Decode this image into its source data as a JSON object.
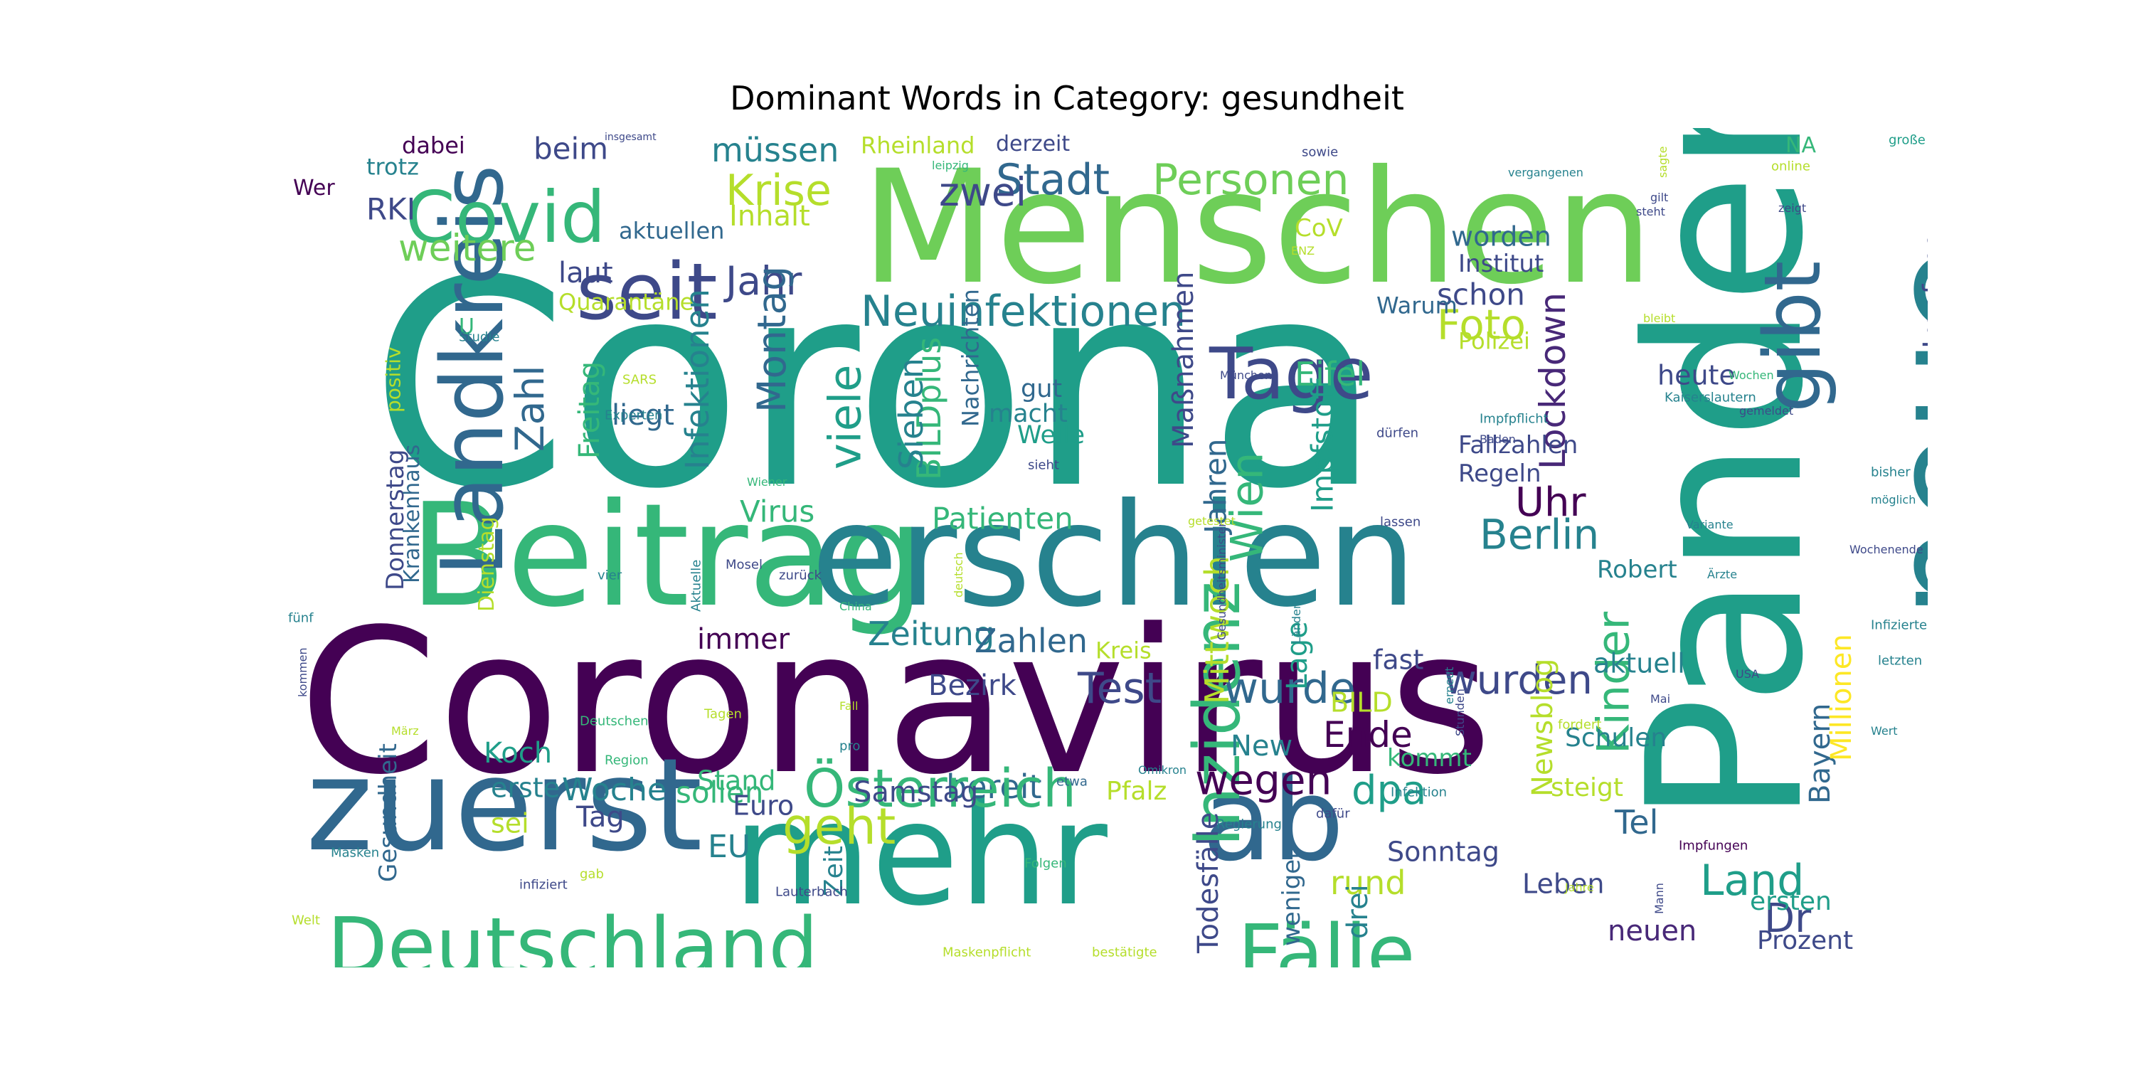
{
  "title": "Dominant Words in Category: gesundheit",
  "palette": [
    "#440154",
    "#482878",
    "#3e4989",
    "#31688e",
    "#26828e",
    "#1f9e89",
    "#35b779",
    "#6ece58",
    "#b5de2b",
    "#fde725"
  ],
  "words": [
    {
      "text": "Corona",
      "color": "#1f9e89",
      "rotated": false
    },
    {
      "text": "Coronavirus",
      "color": "#440154",
      "rotated": false
    },
    {
      "text": "Menschen",
      "color": "#6ece58",
      "rotated": false
    },
    {
      "text": "Pandemie",
      "color": "#1f9e89",
      "rotated": true
    },
    {
      "text": "Beitrag",
      "color": "#35b779",
      "rotated": false
    },
    {
      "text": "erschien",
      "color": "#26828e",
      "rotated": false
    },
    {
      "text": "mehr",
      "color": "#1f9e89",
      "rotated": false
    },
    {
      "text": "zuerst",
      "color": "#31688e",
      "rotated": false
    },
    {
      "text": "neue",
      "color": "#26828e",
      "rotated": true
    },
    {
      "text": "ab",
      "color": "#31688e",
      "rotated": false
    },
    {
      "text": "Landkreis",
      "color": "#31688e",
      "rotated": true
    },
    {
      "text": "Deutschland",
      "color": "#35b779",
      "rotated": false
    },
    {
      "text": "seit",
      "color": "#3e4989",
      "rotated": false
    },
    {
      "text": "Covid",
      "color": "#35b779",
      "rotated": false
    },
    {
      "text": "Fälle",
      "color": "#35b779",
      "rotated": false
    },
    {
      "text": "Inzidenz",
      "color": "#35b779",
      "rotated": true
    },
    {
      "text": "gibt",
      "color": "#31688e",
      "rotated": true
    },
    {
      "text": "Tage",
      "color": "#3e4989",
      "rotated": false
    },
    {
      "text": "Neuinfektionen",
      "color": "#26828e",
      "rotated": false
    },
    {
      "text": "Personen",
      "color": "#6ece58",
      "rotated": false
    },
    {
      "text": "Stadt",
      "color": "#31688e",
      "rotated": false
    },
    {
      "text": "zwei",
      "color": "#3e4989",
      "rotated": false
    },
    {
      "text": "Krise",
      "color": "#b5de2b",
      "rotated": false
    },
    {
      "text": "müssen",
      "color": "#26828e",
      "rotated": false
    },
    {
      "text": "Jahr",
      "color": "#3e4989",
      "rotated": false
    },
    {
      "text": "weitere",
      "color": "#6ece58",
      "rotated": false
    },
    {
      "text": "Inhalt",
      "color": "#b5de2b",
      "rotated": false
    },
    {
      "text": "Rheinland",
      "color": "#b5de2b",
      "rotated": false
    },
    {
      "text": "derzeit",
      "color": "#3e4989",
      "rotated": false
    },
    {
      "text": "beim",
      "color": "#3e4989",
      "rotated": false
    },
    {
      "text": "dabei",
      "color": "#440154",
      "rotated": false
    },
    {
      "text": "insgesamt",
      "color": "#3e4989",
      "rotated": false
    },
    {
      "text": "trotz",
      "color": "#26828e",
      "rotated": false
    },
    {
      "text": "RKI",
      "color": "#3e4989",
      "rotated": false
    },
    {
      "text": "Wer",
      "color": "#440154",
      "rotated": false
    },
    {
      "text": "aktuellen",
      "color": "#31688e",
      "rotated": false
    },
    {
      "text": "laut",
      "color": "#3e4989",
      "rotated": false
    },
    {
      "text": "Quarantäne",
      "color": "#b5de2b",
      "rotated": false
    },
    {
      "text": "Zahl",
      "color": "#31688e",
      "rotated": true
    },
    {
      "text": "Freitag",
      "color": "#35b779",
      "rotated": true
    },
    {
      "text": "Infektionen",
      "color": "#26828e",
      "rotated": true
    },
    {
      "text": "Montag",
      "color": "#31688e",
      "rotated": true
    },
    {
      "text": "viele",
      "color": "#1f9e89",
      "rotated": true
    },
    {
      "text": "BILDplus",
      "color": "#35b779",
      "rotated": true
    },
    {
      "text": "Sieben",
      "color": "#26828e",
      "rotated": true
    },
    {
      "text": "Nachrichten",
      "color": "#31688e",
      "rotated": true
    },
    {
      "text": "liegt",
      "color": "#31688e",
      "rotated": false
    },
    {
      "text": "gut",
      "color": "#31688e",
      "rotated": false
    },
    {
      "text": "macht",
      "color": "#26828e",
      "rotated": false
    },
    {
      "text": "Welle",
      "color": "#1f9e89",
      "rotated": false
    },
    {
      "text": "sieht",
      "color": "#3e4989",
      "rotated": false
    },
    {
      "text": "Virus",
      "color": "#35b779",
      "rotated": false
    },
    {
      "text": "Patienten",
      "color": "#35b779",
      "rotated": false
    },
    {
      "text": "Maßnahmen",
      "color": "#3e4989",
      "rotated": true
    },
    {
      "text": "Jahren",
      "color": "#31688e",
      "rotated": true
    },
    {
      "text": "Wien",
      "color": "#35b779",
      "rotated": true
    },
    {
      "text": "Impfstoff",
      "color": "#1f9e89",
      "rotated": true
    },
    {
      "text": "Eifel",
      "color": "#35b779",
      "rotated": false
    },
    {
      "text": "Foto",
      "color": "#b5de2b",
      "rotated": false
    },
    {
      "text": "schon",
      "color": "#3e4989",
      "rotated": false
    },
    {
      "text": "Warum",
      "color": "#31688e",
      "rotated": false
    },
    {
      "text": "Polizei",
      "color": "#b5de2b",
      "rotated": false
    },
    {
      "text": "Lockdown",
      "color": "#482878",
      "rotated": true
    },
    {
      "text": "worden",
      "color": "#31688e",
      "rotated": false
    },
    {
      "text": "Institut",
      "color": "#3e4989",
      "rotated": false
    },
    {
      "text": "CoV",
      "color": "#b5de2b",
      "rotated": false
    },
    {
      "text": "Impfung",
      "color": "#3e4989",
      "rotated": true
    },
    {
      "text": "heute",
      "color": "#3e4989",
      "rotated": false
    },
    {
      "text": "Uhr",
      "color": "#440154",
      "rotated": false
    },
    {
      "text": "Berlin",
      "color": "#26828e",
      "rotated": false
    },
    {
      "text": "Fallzahlen",
      "color": "#3e4989",
      "rotated": false
    },
    {
      "text": "Regeln",
      "color": "#3e4989",
      "rotated": false
    },
    {
      "text": "Robert",
      "color": "#26828e",
      "rotated": false
    },
    {
      "text": "Test",
      "color": "#3e4989",
      "rotated": false
    },
    {
      "text": "wurde",
      "color": "#31688e",
      "rotated": false
    },
    {
      "text": "wurden",
      "color": "#3e4989",
      "rotated": false
    },
    {
      "text": "Zeitung",
      "color": "#26828e",
      "rotated": false
    },
    {
      "text": "Zahlen",
      "color": "#31688e",
      "rotated": false
    },
    {
      "text": "Kreis",
      "color": "#b5de2b",
      "rotated": false
    },
    {
      "text": "immer",
      "color": "#440154",
      "rotated": false
    },
    {
      "text": "fast",
      "color": "#3e4989",
      "rotated": false
    },
    {
      "text": "Kinder",
      "color": "#35b779",
      "rotated": true
    },
    {
      "text": "aktuell",
      "color": "#26828e",
      "rotated": false
    },
    {
      "text": "Mittwoch",
      "color": "#b5de2b",
      "rotated": true
    },
    {
      "text": "Lage",
      "color": "#1f9e89",
      "rotated": true
    },
    {
      "text": "BILD",
      "color": "#b5de2b",
      "rotated": false
    },
    {
      "text": "Ende",
      "color": "#440154",
      "rotated": false
    },
    {
      "text": "New",
      "color": "#26828e",
      "rotated": false
    },
    {
      "text": "Newsblog",
      "color": "#b5de2b",
      "rotated": true
    },
    {
      "text": "Schulen",
      "color": "#26828e",
      "rotated": false
    },
    {
      "text": "Bayern",
      "color": "#31688e",
      "rotated": true
    },
    {
      "text": "Millionen",
      "color": "#fde725",
      "rotated": true
    },
    {
      "text": "Bezirk",
      "color": "#3e4989",
      "rotated": false
    },
    {
      "text": "bereit",
      "color": "#31688e",
      "rotated": false
    },
    {
      "text": "Österreich",
      "color": "#35b779",
      "rotated": false
    },
    {
      "text": "wegen",
      "color": "#440154",
      "rotated": false
    },
    {
      "text": "dpa",
      "color": "#1f9e89",
      "rotated": false
    },
    {
      "text": "Tel",
      "color": "#31688e",
      "rotated": false
    },
    {
      "text": "steigt",
      "color": "#b5de2b",
      "rotated": false
    },
    {
      "text": "geht",
      "color": "#b5de2b",
      "rotated": false
    },
    {
      "text": "Woche",
      "color": "#26828e",
      "rotated": false
    },
    {
      "text": "sollen",
      "color": "#35b779",
      "rotated": false
    },
    {
      "text": "Samstag",
      "color": "#3e4989",
      "rotated": false
    },
    {
      "text": "Pfalz",
      "color": "#b5de2b",
      "rotated": false
    },
    {
      "text": "Land",
      "color": "#1f9e89",
      "rotated": false
    },
    {
      "text": "Dr",
      "color": "#3e4989",
      "rotated": false
    },
    {
      "text": "Sonntag",
      "color": "#3e4989",
      "rotated": false
    },
    {
      "text": "rund",
      "color": "#b5de2b",
      "rotated": false
    },
    {
      "text": "drei",
      "color": "#26828e",
      "rotated": true
    },
    {
      "text": "Leben",
      "color": "#3e4989",
      "rotated": false
    },
    {
      "text": "ersten",
      "color": "#1f9e89",
      "rotated": false
    },
    {
      "text": "neuen",
      "color": "#482878",
      "rotated": false
    },
    {
      "text": "Prozent",
      "color": "#3e4989",
      "rotated": false
    },
    {
      "text": "Todesfälle",
      "color": "#3e4989",
      "rotated": true
    },
    {
      "text": "weniger",
      "color": "#31688e",
      "rotated": true
    },
    {
      "text": "EU",
      "color": "#26828e",
      "rotated": false
    },
    {
      "text": "Euro",
      "color": "#3e4989",
      "rotated": false
    },
    {
      "text": "Stand",
      "color": "#35b779",
      "rotated": false
    },
    {
      "text": "Tag",
      "color": "#3e4989",
      "rotated": false
    },
    {
      "text": "sei",
      "color": "#b5de2b",
      "rotated": false
    },
    {
      "text": "erste",
      "color": "#26828e",
      "rotated": false
    },
    {
      "text": "Koch",
      "color": "#1f9e89",
      "rotated": false
    },
    {
      "text": "Zeit",
      "color": "#26828e",
      "rotated": true
    },
    {
      "text": "Gesundheit",
      "color": "#31688e",
      "rotated": true
    },
    {
      "text": "Donnerstag",
      "color": "#3e4989",
      "rotated": true
    },
    {
      "text": "Krankenhaus",
      "color": "#31688e",
      "rotated": true
    },
    {
      "text": "Dienstag",
      "color": "#b5de2b",
      "rotated": true
    },
    {
      "text": "positiv",
      "color": "#b5de2b",
      "rotated": true
    },
    {
      "text": "U",
      "color": "#35b779",
      "rotated": false
    },
    {
      "text": "NA",
      "color": "#35b779",
      "rotated": false
    },
    {
      "text": "große",
      "color": "#1f9e89",
      "rotated": false
    },
    {
      "text": "online",
      "color": "#b5de2b",
      "rotated": false
    },
    {
      "text": "sagte",
      "color": "#b5de2b",
      "rotated": true
    },
    {
      "text": "gilt",
      "color": "#3e4989",
      "rotated": false
    },
    {
      "text": "steht",
      "color": "#3e4989",
      "rotated": false
    },
    {
      "text": "zeigt",
      "color": "#3e4989",
      "rotated": false
    },
    {
      "text": "vergangenen",
      "color": "#26828e",
      "rotated": false
    },
    {
      "text": "sowie",
      "color": "#3e4989",
      "rotated": false
    },
    {
      "text": "leipzig",
      "color": "#35b779",
      "rotated": false
    },
    {
      "text": "ENZ",
      "color": "#b5de2b",
      "rotated": false
    },
    {
      "text": "Studie",
      "color": "#26828e",
      "rotated": false
    },
    {
      "text": "SARS",
      "color": "#b5de2b",
      "rotated": false
    },
    {
      "text": "Experten",
      "color": "#26828e",
      "rotated": false
    },
    {
      "text": "Wiener",
      "color": "#35b779",
      "rotated": false
    },
    {
      "text": "München",
      "color": "#3e4989",
      "rotated": false
    },
    {
      "text": "dürfen",
      "color": "#3e4989",
      "rotated": false
    },
    {
      "text": "Impfpflicht",
      "color": "#26828e",
      "rotated": false
    },
    {
      "text": "Baden",
      "color": "#3e4989",
      "rotated": false
    },
    {
      "text": "Kaiserslautern",
      "color": "#26828e",
      "rotated": false
    },
    {
      "text": "bleibt",
      "color": "#b5de2b",
      "rotated": false
    },
    {
      "text": "Wochen",
      "color": "#35b779",
      "rotated": false
    },
    {
      "text": "gemeldet",
      "color": "#3e4989",
      "rotated": false
    },
    {
      "text": "bisher",
      "color": "#26828e",
      "rotated": false
    },
    {
      "text": "möglich",
      "color": "#26828e",
      "rotated": false
    },
    {
      "text": "Wochenende",
      "color": "#3e4989",
      "rotated": false
    },
    {
      "text": "Variante",
      "color": "#26828e",
      "rotated": false
    },
    {
      "text": "Ärzte",
      "color": "#26828e",
      "rotated": false
    },
    {
      "text": "Infizierte",
      "color": "#26828e",
      "rotated": false
    },
    {
      "text": "letzten",
      "color": "#26828e",
      "rotated": false
    },
    {
      "text": "USA",
      "color": "#3e4989",
      "rotated": false
    },
    {
      "text": "Mai",
      "color": "#3e4989",
      "rotated": false
    },
    {
      "text": "Wert",
      "color": "#26828e",
      "rotated": false
    },
    {
      "text": "fordert",
      "color": "#b5de2b",
      "rotated": false
    },
    {
      "text": "Impfungen",
      "color": "#440154",
      "rotated": false
    },
    {
      "text": "Jahre",
      "color": "#b5de2b",
      "rotated": false
    },
    {
      "text": "Mann",
      "color": "#3e4989",
      "rotated": true
    },
    {
      "text": "getestet",
      "color": "#b5de2b",
      "rotated": false
    },
    {
      "text": "lassen",
      "color": "#3e4989",
      "rotated": false
    },
    {
      "text": "Gesundheitsminister",
      "color": "#3e4989",
      "rotated": true
    },
    {
      "text": "Länder",
      "color": "#26828e",
      "rotated": true
    },
    {
      "text": "Stunden",
      "color": "#3e4989",
      "rotated": true
    },
    {
      "text": "erneut",
      "color": "#26828e",
      "rotated": true
    },
    {
      "text": "Omikron",
      "color": "#26828e",
      "rotated": false
    },
    {
      "text": "Infektion",
      "color": "#26828e",
      "rotated": false
    },
    {
      "text": "Regierung",
      "color": "#26828e",
      "rotated": false
    },
    {
      "text": "dafür",
      "color": "#3e4989",
      "rotated": false
    },
    {
      "text": "etwa",
      "color": "#31688e",
      "rotated": false
    },
    {
      "text": "Folgen",
      "color": "#35b779",
      "rotated": false
    },
    {
      "text": "gab",
      "color": "#b5de2b",
      "rotated": false
    },
    {
      "text": "Lauterbach",
      "color": "#3e4989",
      "rotated": false
    },
    {
      "text": "Maskenpflicht",
      "color": "#b5de2b",
      "rotated": false
    },
    {
      "text": "bestätigte",
      "color": "#b5de2b",
      "rotated": false
    },
    {
      "text": "Mosel",
      "color": "#3e4989",
      "rotated": false
    },
    {
      "text": "zurück",
      "color": "#3e4989",
      "rotated": false
    },
    {
      "text": "vier",
      "color": "#26828e",
      "rotated": false
    },
    {
      "text": "Aktuelle",
      "color": "#26828e",
      "rotated": true
    },
    {
      "text": "deutsch",
      "color": "#b5de2b",
      "rotated": true
    },
    {
      "text": "China",
      "color": "#35b779",
      "rotated": false
    },
    {
      "text": "Fall",
      "color": "#b5de2b",
      "rotated": false
    },
    {
      "text": "pro",
      "color": "#26828e",
      "rotated": false
    },
    {
      "text": "Tagen",
      "color": "#b5de2b",
      "rotated": false
    },
    {
      "text": "Deutschen",
      "color": "#35b779",
      "rotated": false
    },
    {
      "text": "März",
      "color": "#b5de2b",
      "rotated": false
    },
    {
      "text": "Region",
      "color": "#35b779",
      "rotated": false
    },
    {
      "text": "fünf",
      "color": "#26828e",
      "rotated": false
    },
    {
      "text": "kommen",
      "color": "#3e4989",
      "rotated": true
    },
    {
      "text": "kommt",
      "color": "#35b779",
      "rotated": false
    },
    {
      "text": "Masken",
      "color": "#26828e",
      "rotated": false
    },
    {
      "text": "infiziert",
      "color": "#3e4989",
      "rotated": false
    },
    {
      "text": "Welt",
      "color": "#b5de2b",
      "rotated": false
    }
  ]
}
